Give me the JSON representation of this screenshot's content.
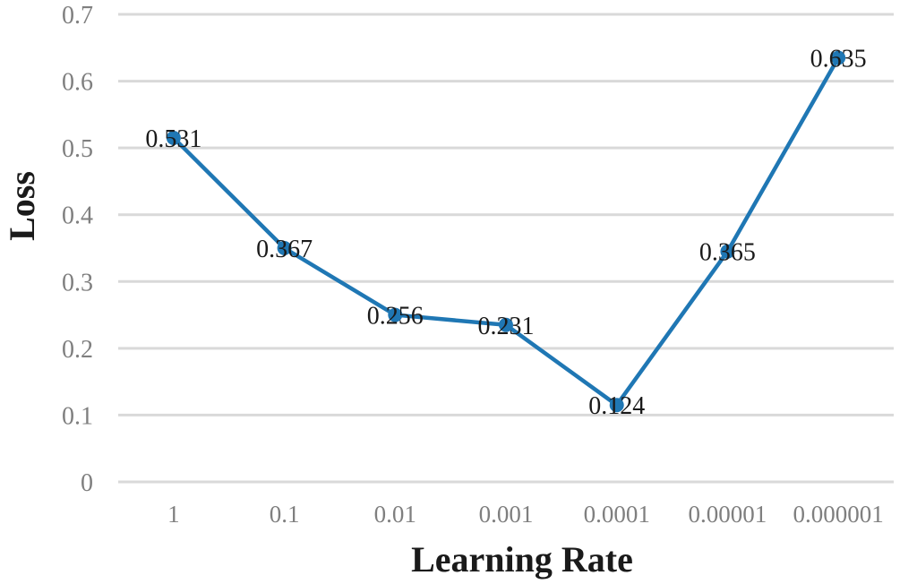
{
  "chart_data": {
    "type": "line",
    "title": "",
    "xlabel": "Learning Rate",
    "ylabel": "Loss",
    "categories": [
      "1",
      "0.1",
      "0.01",
      "0.001",
      "0.0001",
      "0.00001",
      "0.000001"
    ],
    "series": [
      {
        "values": [
          0.531,
          0.367,
          0.256,
          0.231,
          0.124,
          0.365,
          0.635
        ],
        "plotted_values": [
          0.515,
          0.35,
          0.25,
          0.235,
          0.115,
          0.345,
          0.635
        ],
        "data_labels": [
          "0.531",
          "0.367",
          "0.256",
          "0.231",
          "0.124",
          "0.365",
          "0.635"
        ],
        "color": "#1f77b4"
      }
    ],
    "ylim": [
      0,
      0.7
    ],
    "yticks": [
      "0",
      "0.1",
      "0.2",
      "0.3",
      "0.4",
      "0.5",
      "0.6",
      "0.7"
    ],
    "grid": true,
    "legend": "none",
    "colors": {
      "line": "#1f77b4",
      "grid": "#d9d9d9",
      "tick_text": "#7f7f7f",
      "label_text": "#1a1a1a"
    }
  }
}
